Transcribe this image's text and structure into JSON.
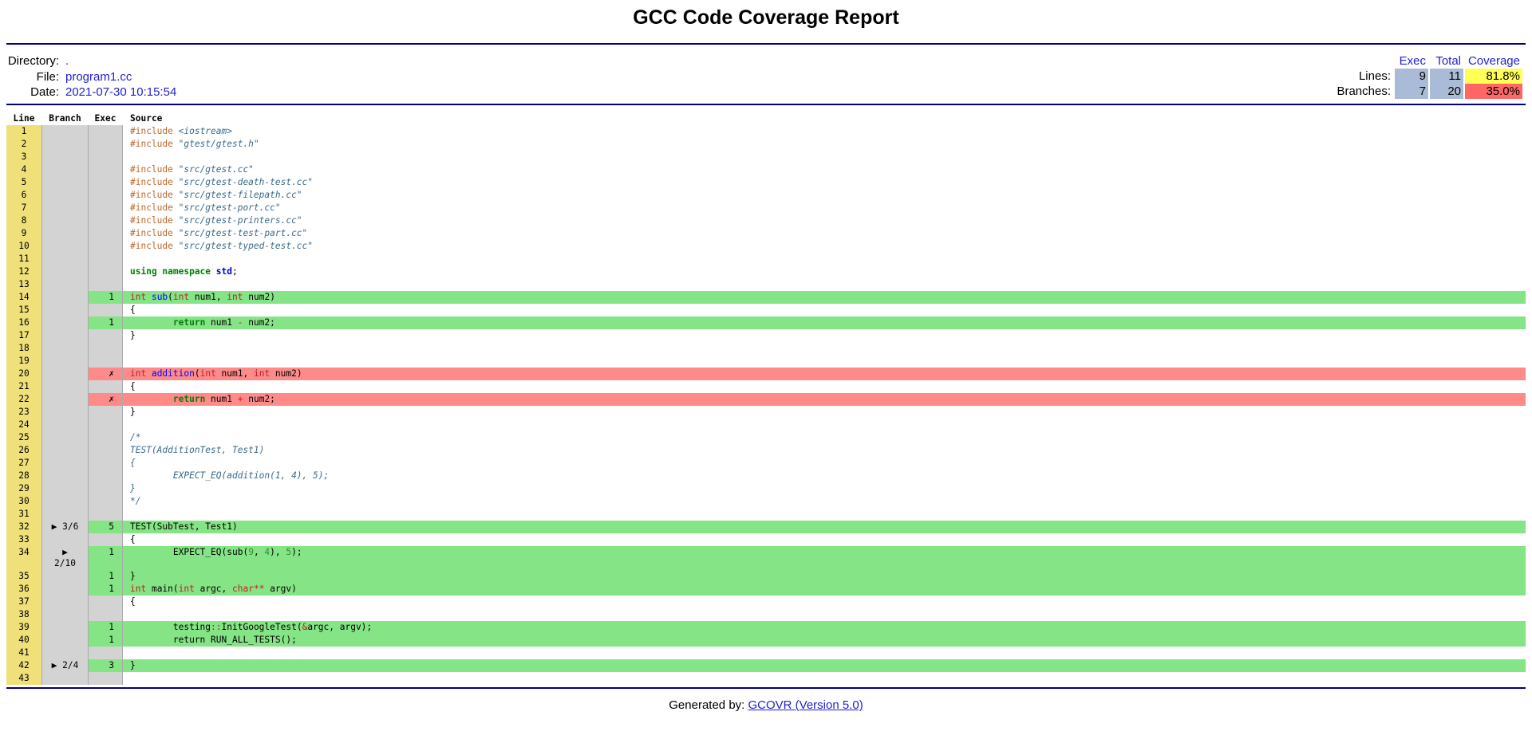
{
  "header": {
    "title": "GCC Code Coverage Report"
  },
  "info": {
    "directory_label": "Directory:",
    "directory": ".",
    "file_label": "File:",
    "file": "program1.cc",
    "date_label": "Date:",
    "date": "2021-07-30 10:15:54"
  },
  "summary": {
    "col_exec": "Exec",
    "col_total": "Total",
    "col_coverage": "Coverage",
    "lines": {
      "label": "Lines:",
      "exec": "9",
      "total": "11",
      "coverage": "81.8%",
      "color": "#ffff55"
    },
    "branches": {
      "label": "Branches:",
      "exec": "7",
      "total": "20",
      "coverage": "35.0%",
      "color": "#ff6666"
    }
  },
  "table": {
    "col_line": "Line",
    "col_branch": "Branch",
    "col_exec": "Exec",
    "col_source": "Source"
  },
  "rows": [
    {
      "n": "1",
      "b": "",
      "e": "",
      "s": "c",
      "h": [
        [
          "pp",
          "#include "
        ],
        [
          "str",
          "<iostream>"
        ]
      ]
    },
    {
      "n": "2",
      "b": "",
      "e": "",
      "s": "c",
      "h": [
        [
          "pp",
          "#include "
        ],
        [
          "str",
          "\"gtest/gtest.h\""
        ]
      ]
    },
    {
      "n": "3",
      "b": "",
      "e": "",
      "s": "c",
      "h": []
    },
    {
      "n": "4",
      "b": "",
      "e": "",
      "s": "c",
      "h": [
        [
          "pp",
          "#include "
        ],
        [
          "str",
          "\"src/gtest.cc\""
        ]
      ]
    },
    {
      "n": "5",
      "b": "",
      "e": "",
      "s": "c",
      "h": [
        [
          "pp",
          "#include "
        ],
        [
          "str",
          "\"src/gtest-death-test.cc\""
        ]
      ]
    },
    {
      "n": "6",
      "b": "",
      "e": "",
      "s": "c",
      "h": [
        [
          "pp",
          "#include "
        ],
        [
          "str",
          "\"src/gtest-filepath.cc\""
        ]
      ]
    },
    {
      "n": "7",
      "b": "",
      "e": "",
      "s": "c",
      "h": [
        [
          "pp",
          "#include "
        ],
        [
          "str",
          "\"src/gtest-port.cc\""
        ]
      ]
    },
    {
      "n": "8",
      "b": "",
      "e": "",
      "s": "c",
      "h": [
        [
          "pp",
          "#include "
        ],
        [
          "str",
          "\"src/gtest-printers.cc\""
        ]
      ]
    },
    {
      "n": "9",
      "b": "",
      "e": "",
      "s": "c",
      "h": [
        [
          "pp",
          "#include "
        ],
        [
          "str",
          "\"src/gtest-test-part.cc\""
        ]
      ]
    },
    {
      "n": "10",
      "b": "",
      "e": "",
      "s": "c",
      "h": [
        [
          "pp",
          "#include "
        ],
        [
          "str",
          "\"src/gtest-typed-test.cc\""
        ]
      ]
    },
    {
      "n": "11",
      "b": "",
      "e": "",
      "s": "c",
      "h": []
    },
    {
      "n": "12",
      "b": "",
      "e": "",
      "s": "c",
      "h": [
        [
          "kw",
          "using namespace "
        ],
        [
          "ns",
          "std"
        ],
        [
          "",
          "; "
        ]
      ]
    },
    {
      "n": "13",
      "b": "",
      "e": "",
      "s": "c",
      "h": []
    },
    {
      "n": "14",
      "b": "",
      "e": "1",
      "s": "cov",
      "h": [
        [
          "ty",
          "int "
        ],
        [
          "fn",
          "sub"
        ],
        [
          "",
          "("
        ],
        [
          "ty",
          "int"
        ],
        [
          "",
          " num1, "
        ],
        [
          "ty",
          "int"
        ],
        [
          "",
          " num2)"
        ]
      ]
    },
    {
      "n": "15",
      "b": "",
      "e": "",
      "s": "c",
      "h": [
        [
          "",
          "{"
        ]
      ]
    },
    {
      "n": "16",
      "b": "",
      "e": "1",
      "s": "cov",
      "h": [
        [
          "",
          "        "
        ],
        [
          "kw",
          "return"
        ],
        [
          "",
          " num1 "
        ],
        [
          "op",
          "-"
        ],
        [
          "",
          " num2;"
        ]
      ]
    },
    {
      "n": "17",
      "b": "",
      "e": "",
      "s": "c",
      "h": [
        [
          "",
          "}"
        ]
      ]
    },
    {
      "n": "18",
      "b": "",
      "e": "",
      "s": "c",
      "h": []
    },
    {
      "n": "19",
      "b": "",
      "e": "",
      "s": "c",
      "h": []
    },
    {
      "n": "20",
      "b": "",
      "e": "✗",
      "s": "unc",
      "h": [
        [
          "ty",
          "int "
        ],
        [
          "fn",
          "addition"
        ],
        [
          "",
          "("
        ],
        [
          "ty",
          "int"
        ],
        [
          "",
          " num1, "
        ],
        [
          "ty",
          "int"
        ],
        [
          "",
          " num2)"
        ]
      ]
    },
    {
      "n": "21",
      "b": "",
      "e": "",
      "s": "c",
      "h": [
        [
          "",
          "{"
        ]
      ]
    },
    {
      "n": "22",
      "b": "",
      "e": "✗",
      "s": "unc",
      "h": [
        [
          "",
          "        "
        ],
        [
          "kw",
          "return"
        ],
        [
          "",
          " num1 "
        ],
        [
          "op",
          "+"
        ],
        [
          "",
          " num2;"
        ]
      ]
    },
    {
      "n": "23",
      "b": "",
      "e": "",
      "s": "c",
      "h": [
        [
          "",
          "}"
        ]
      ]
    },
    {
      "n": "24",
      "b": "",
      "e": "",
      "s": "c",
      "h": []
    },
    {
      "n": "25",
      "b": "",
      "e": "",
      "s": "c",
      "h": [
        [
          "cmt",
          "/*"
        ]
      ]
    },
    {
      "n": "26",
      "b": "",
      "e": "",
      "s": "c",
      "h": [
        [
          "cmt",
          "TEST(AdditionTest, Test1)"
        ]
      ]
    },
    {
      "n": "27",
      "b": "",
      "e": "",
      "s": "c",
      "h": [
        [
          "cmt",
          "{"
        ]
      ]
    },
    {
      "n": "28",
      "b": "",
      "e": "",
      "s": "c",
      "h": [
        [
          "cmt",
          "        EXPECT_EQ(addition(1, 4), 5);"
        ]
      ]
    },
    {
      "n": "29",
      "b": "",
      "e": "",
      "s": "c",
      "h": [
        [
          "cmt",
          "}"
        ]
      ]
    },
    {
      "n": "30",
      "b": "",
      "e": "",
      "s": "c",
      "h": [
        [
          "cmt",
          "*/"
        ]
      ]
    },
    {
      "n": "31",
      "b": "",
      "e": "",
      "s": "c",
      "h": []
    },
    {
      "n": "32",
      "b": "▶ 3/6",
      "e": "5",
      "s": "cov",
      "h": [
        [
          "",
          "TEST(SubTest, Test1)"
        ]
      ]
    },
    {
      "n": "33",
      "b": "",
      "e": "",
      "s": "c",
      "h": [
        [
          "",
          "{"
        ]
      ]
    },
    {
      "n": "34",
      "b": "▶\n2/10",
      "e": "1",
      "s": "cov",
      "tall": true,
      "h": [
        [
          "",
          "        EXPECT_EQ(sub("
        ],
        [
          "num",
          "9"
        ],
        [
          "",
          ", "
        ],
        [
          "num",
          "4"
        ],
        [
          "",
          "), "
        ],
        [
          "num",
          "5"
        ],
        [
          "",
          ");"
        ]
      ]
    },
    {
      "n": "35",
      "b": "",
      "e": "1",
      "s": "cov",
      "h": [
        [
          "",
          "}"
        ]
      ]
    },
    {
      "n": "36",
      "b": "",
      "e": "1",
      "s": "cov",
      "h": [
        [
          "ty",
          "int"
        ],
        [
          "",
          " main("
        ],
        [
          "ty",
          "int"
        ],
        [
          "",
          " argc, "
        ],
        [
          "ty",
          "char"
        ],
        [
          "op",
          "**"
        ],
        [
          "",
          " argv)"
        ]
      ]
    },
    {
      "n": "37",
      "b": "",
      "e": "",
      "s": "c",
      "h": [
        [
          "",
          "{"
        ]
      ]
    },
    {
      "n": "38",
      "b": "",
      "e": "",
      "s": "c",
      "h": []
    },
    {
      "n": "39",
      "b": "",
      "e": "1",
      "s": "cov",
      "h": [
        [
          "",
          "        testing"
        ],
        [
          "op",
          "::"
        ],
        [
          "",
          "InitGoogleTest("
        ],
        [
          "op",
          "&"
        ],
        [
          "",
          "argc, argv);"
        ]
      ]
    },
    {
      "n": "40",
      "b": "",
      "e": "1",
      "s": "cov",
      "h": [
        [
          "",
          "        return RUN_ALL_TESTS();"
        ]
      ]
    },
    {
      "n": "41",
      "b": "",
      "e": "",
      "s": "c",
      "h": []
    },
    {
      "n": "42",
      "b": "▶ 2/4",
      "e": "3",
      "s": "cov",
      "h": [
        [
          "",
          "}"
        ]
      ]
    },
    {
      "n": "43",
      "b": "",
      "e": "",
      "s": "c",
      "h": []
    }
  ],
  "footer": {
    "prefix": "Generated by: ",
    "link": "GCOVR (Version 5.0)"
  }
}
